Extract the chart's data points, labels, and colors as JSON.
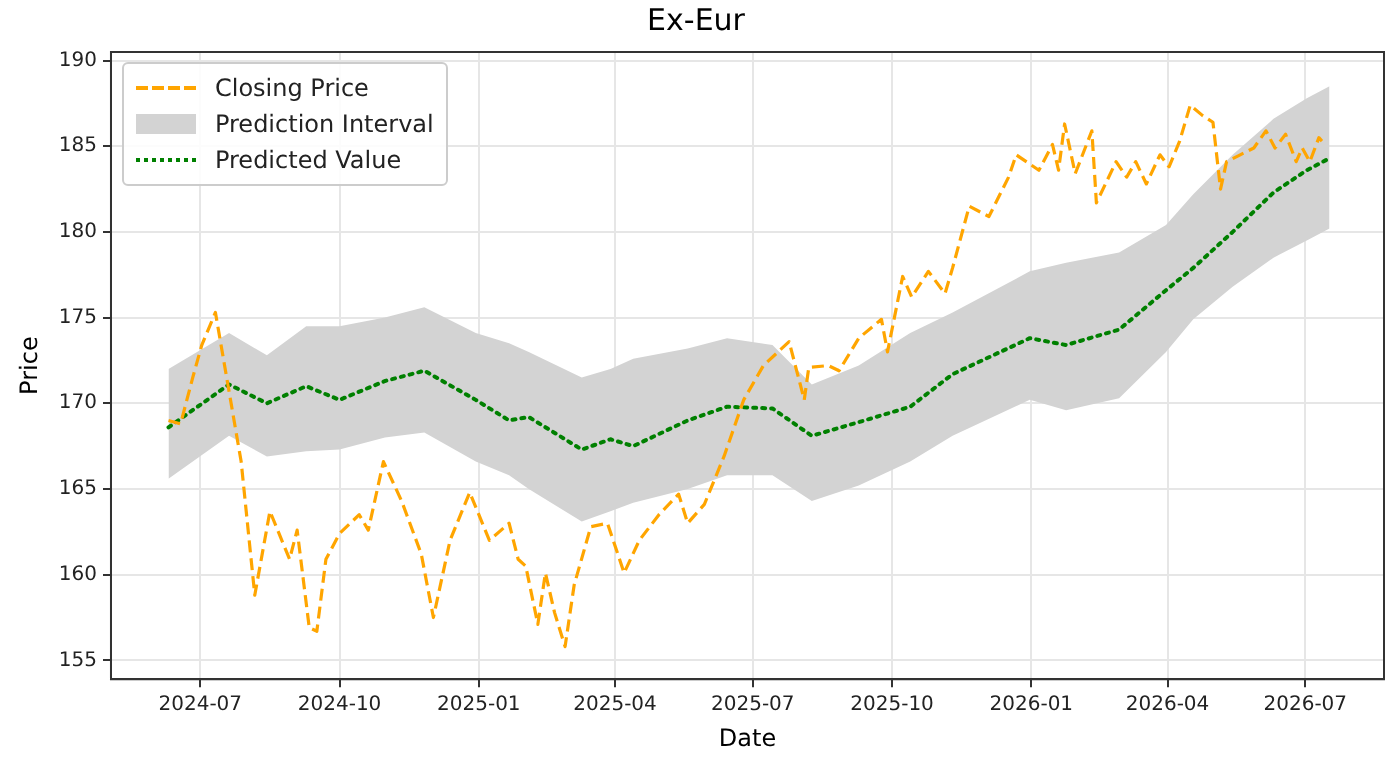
{
  "chart_data": {
    "type": "line",
    "title": "Ex-Eur",
    "xlabel": "Date",
    "ylabel": "Price",
    "xlim": [
      "2024-05-03",
      "2026-08-22"
    ],
    "xticks": [
      "2024-07",
      "2024-10",
      "2025-01",
      "2025-04",
      "2025-07",
      "2025-10",
      "2026-01",
      "2026-04",
      "2026-07"
    ],
    "ylim": [
      153.9,
      190.5
    ],
    "yticks": [
      155,
      160,
      165,
      170,
      175,
      180,
      185,
      190
    ],
    "grid": true,
    "legend": "top left",
    "annotations": [
      "Prediction Interval"
    ],
    "series": [
      {
        "name": "Closing Price",
        "type": "line",
        "color": "#ffa500",
        "line_style": "dashed",
        "x": [
          "2024-06-10",
          "2024-06-18",
          "2024-06-26",
          "2024-07-02",
          "2024-07-11",
          "2024-07-20",
          "2024-07-28",
          "2024-08-06",
          "2024-08-16",
          "2024-08-29",
          "2024-09-03",
          "2024-09-11",
          "2024-09-16",
          "2024-09-22",
          "2024-10-01",
          "2024-10-14",
          "2024-10-20",
          "2024-10-30",
          "2024-11-11",
          "2024-11-24",
          "2024-12-02",
          "2024-12-13",
          "2024-12-26",
          "2025-01-08",
          "2025-01-21",
          "2025-01-27",
          "2025-02-01",
          "2025-02-09",
          "2025-02-14",
          "2025-02-20",
          "2025-02-27",
          "2025-03-05",
          "2025-03-16",
          "2025-03-27",
          "2025-04-07",
          "2025-04-17",
          "2025-04-30",
          "2025-05-13",
          "2025-05-19",
          "2025-05-30",
          "2025-06-12",
          "2025-06-25",
          "2025-07-08",
          "2025-07-25",
          "2025-08-04",
          "2025-08-07",
          "2025-08-20",
          "2025-08-27",
          "2025-09-09",
          "2025-09-24",
          "2025-09-28",
          "2025-10-08",
          "2025-10-14",
          "2025-10-25",
          "2025-11-05",
          "2025-11-10",
          "2025-11-21",
          "2025-12-04",
          "2025-12-17",
          "2025-12-22",
          "2026-01-06",
          "2026-01-15",
          "2026-01-19",
          "2026-01-23",
          "2026-01-30",
          "2026-02-10",
          "2026-02-13",
          "2026-02-19",
          "2026-02-26",
          "2026-03-05",
          "2026-03-11",
          "2026-03-18",
          "2026-03-27",
          "2026-04-02",
          "2026-04-09",
          "2026-04-16",
          "2026-04-24",
          "2026-05-01",
          "2026-05-06",
          "2026-05-10",
          "2026-05-19",
          "2026-05-28",
          "2026-06-05",
          "2026-06-11",
          "2026-06-18",
          "2026-06-25",
          "2026-06-29",
          "2026-07-04",
          "2026-07-10",
          "2026-07-12"
        ],
        "values": [
          169.0,
          168.8,
          171.5,
          173.4,
          175.3,
          170.7,
          166.6,
          158.8,
          163.7,
          160.9,
          162.6,
          156.9,
          156.7,
          160.9,
          162.4,
          163.5,
          162.6,
          166.6,
          164.3,
          161.2,
          157.5,
          162.0,
          164.8,
          162.0,
          163.0,
          160.9,
          160.5,
          157.1,
          160.1,
          157.8,
          155.8,
          159.4,
          162.8,
          163.0,
          160.1,
          162.0,
          163.5,
          164.7,
          163.0,
          164.1,
          166.9,
          170.2,
          172.2,
          173.6,
          170.2,
          172.1,
          172.2,
          171.9,
          173.8,
          174.9,
          173.0,
          177.4,
          176.2,
          177.7,
          176.4,
          177.9,
          181.5,
          180.9,
          183.2,
          184.5,
          183.6,
          185.1,
          183.6,
          186.3,
          183.4,
          185.9,
          181.7,
          182.8,
          184.1,
          183.2,
          184.1,
          182.8,
          184.5,
          183.8,
          185.3,
          187.4,
          186.8,
          186.4,
          182.5,
          184.1,
          184.5,
          184.9,
          185.9,
          184.9,
          185.7,
          184.1,
          184.9,
          184.1,
          185.5,
          185.3
        ]
      },
      {
        "name": "Predicted Value",
        "type": "line",
        "color": "#008000",
        "line_style": "dotted",
        "x": [
          "2024-06-10",
          "2024-07-20",
          "2024-08-14",
          "2024-09-09",
          "2024-10-01",
          "2024-10-31",
          "2024-11-26",
          "2024-12-30",
          "2025-01-21",
          "2025-02-03",
          "2025-03-10",
          "2025-03-29",
          "2025-04-13",
          "2025-05-19",
          "2025-06-14",
          "2025-07-14",
          "2025-08-09",
          "2025-09-09",
          "2025-10-13",
          "2025-11-10",
          "2025-12-31",
          "2026-01-24",
          "2026-02-28",
          "2026-03-31",
          "2026-04-18",
          "2026-05-14",
          "2026-06-10",
          "2026-07-02",
          "2026-07-17"
        ],
        "values": [
          168.6,
          171.1,
          170.0,
          171.0,
          170.2,
          171.3,
          171.9,
          170.2,
          169.0,
          169.2,
          167.3,
          167.9,
          167.5,
          169.0,
          169.8,
          169.7,
          168.1,
          168.9,
          169.8,
          171.7,
          173.8,
          173.4,
          174.3,
          176.6,
          177.9,
          180.0,
          182.3,
          183.6,
          184.3
        ],
        "lower": [
          165.6,
          168.1,
          166.9,
          167.2,
          167.3,
          168.0,
          168.3,
          166.6,
          165.8,
          165.0,
          163.1,
          163.7,
          164.2,
          165.0,
          165.8,
          165.8,
          164.3,
          165.2,
          166.6,
          168.1,
          170.2,
          169.6,
          170.3,
          173.0,
          174.9,
          176.8,
          178.5,
          179.5,
          180.2
        ],
        "upper": [
          172.0,
          174.1,
          172.8,
          174.5,
          174.5,
          175.0,
          175.6,
          174.1,
          173.5,
          173.0,
          171.5,
          172.0,
          172.6,
          173.2,
          173.8,
          173.4,
          171.1,
          172.2,
          174.1,
          175.3,
          177.7,
          178.2,
          178.8,
          180.4,
          182.2,
          184.5,
          186.6,
          187.8,
          188.5
        ]
      }
    ]
  }
}
